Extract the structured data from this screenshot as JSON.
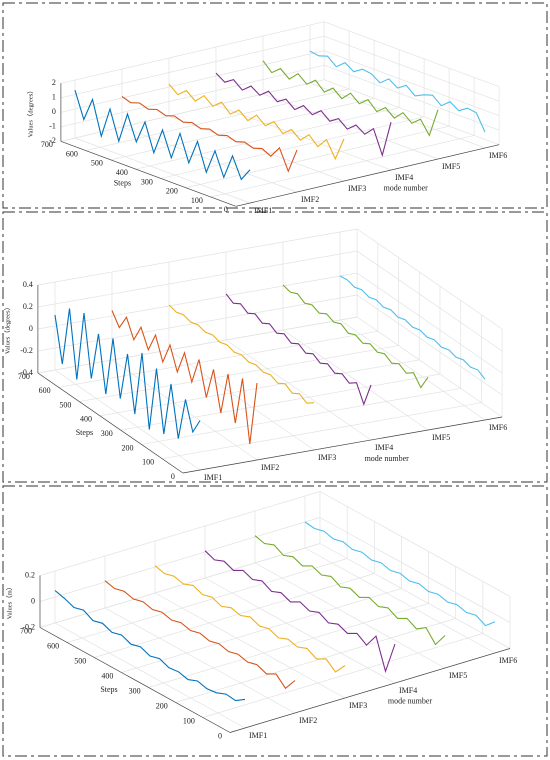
{
  "chart_data": [
    {
      "type": "waterfall3d",
      "zlabel": "Values（degrees）",
      "ylabel": "Steps",
      "xlabel": "mode number",
      "categories": [
        "IMF1",
        "IMF2",
        "IMF3",
        "IMF4",
        "IMF5",
        "IMF6"
      ],
      "x": [
        0,
        35,
        70,
        105,
        140,
        175,
        210,
        245,
        280,
        315,
        350,
        385,
        420,
        455,
        490,
        525,
        560,
        595,
        630,
        665,
        700
      ],
      "ylim": [
        0,
        700
      ],
      "yticks": [
        0,
        100,
        200,
        300,
        400,
        500,
        600,
        700
      ],
      "zlim": [
        -2,
        2
      ],
      "zticks": [
        -2,
        -1,
        0,
        1,
        2
      ],
      "grid": true,
      "series": [
        {
          "color": "#0072BD",
          "values": [
            0.3,
            -0.6,
            0.8,
            -0.9,
            0.7,
            -1,
            0.9,
            -0.8,
            1,
            -0.9,
            0.8,
            -1,
            0.9,
            -0.7,
            1,
            -1.1,
            0.9,
            -1.2,
            1.1,
            -0.5,
            1.3
          ]
        },
        {
          "color": "#D95319",
          "values": [
            0.9,
            -0.8,
            0.6,
            -0.2,
            0.1,
            -0.1,
            0.1,
            -0.1,
            0.1,
            -0.1,
            0.1,
            -0.1,
            0.1,
            -0.1,
            0.1,
            -0.1,
            0.1,
            -0.1,
            0.1,
            -0.1,
            0.1
          ]
        },
        {
          "color": "#EDB120",
          "values": [
            0.9,
            -0.7,
            0.4,
            -0.3,
            0.3,
            -0.3,
            0.2,
            -0.3,
            0.3,
            -0.2,
            0.3,
            -0.3,
            0.2,
            -0.3,
            0.3,
            -0.2,
            0.3,
            -0.3,
            0.2,
            -0.3,
            0.2
          ]
        },
        {
          "color": "#7E2F8E",
          "values": [
            1.3,
            -1.2,
            0.4,
            -0.2,
            0.2,
            -0.3,
            0.2,
            -0.2,
            0.3,
            -0.2,
            0.2,
            -0.3,
            0.2,
            -0.2,
            0.3,
            -0.2,
            0.2,
            -0.3,
            0.2,
            -0.2,
            0.2
          ]
        },
        {
          "color": "#77AC30",
          "values": [
            1.4,
            -0.6,
            0.3,
            -0.2,
            0.3,
            -0.3,
            0.2,
            -0.3,
            0.3,
            -0.2,
            0.3,
            -0.3,
            0.2,
            -0.3,
            0.3,
            -0.2,
            0.3,
            -0.3,
            0.2,
            -0.3,
            0.3
          ]
        },
        {
          "color": "#4DBEEE",
          "values": [
            -0.9,
            0.2,
            0.3,
            -0.1,
            0.3,
            -0.2,
            0.3,
            0.1,
            -0.2,
            0.3,
            -0.1,
            0.3,
            -0.2,
            0.2,
            0.3,
            -0.1,
            0.3,
            -0.2,
            0.3,
            0.1,
            0.2
          ]
        }
      ]
    },
    {
      "type": "waterfall3d",
      "zlabel": "Values（degrees）",
      "ylabel": "Steps",
      "xlabel": "mode number",
      "categories": [
        "IMF1",
        "IMF2",
        "IMF3",
        "IMF4",
        "IMF5",
        "IMF6"
      ],
      "x": [
        0,
        35,
        70,
        105,
        140,
        175,
        210,
        245,
        280,
        315,
        350,
        385,
        420,
        455,
        490,
        525,
        560,
        595,
        630,
        665,
        700
      ],
      "ylim": [
        0,
        700
      ],
      "yticks": [
        0,
        100,
        200,
        300,
        400,
        500,
        600,
        700
      ],
      "zlim": [
        -0.4,
        0.4
      ],
      "zticks": [
        -0.4,
        -0.2,
        0,
        0.2,
        0.4
      ],
      "grid": true,
      "series": [
        {
          "color": "#0072BD",
          "values": [
            0.05,
            -0.1,
            0.15,
            -0.25,
            0.2,
            -0.3,
            0.25,
            -0.35,
            0.3,
            -0.3,
            0.2,
            -0.25,
            0.25,
            -0.3,
            0.2,
            -0.25,
            0.3,
            -0.35,
            0.25,
            -0.3,
            0.1
          ]
        },
        {
          "color": "#D95319",
          "values": [
            0.3,
            -0.3,
            0.25,
            -0.2,
            0.2,
            -0.2,
            0.15,
            -0.15,
            0.15,
            -0.1,
            0.12,
            -0.1,
            0.1,
            -0.1,
            0.1,
            -0.08,
            0.08,
            -0.08,
            0.08,
            -0.06,
            0.05
          ]
        },
        {
          "color": "#EDB120",
          "values": [
            0.03,
            -0.02,
            0.02,
            -0.02,
            0.02,
            -0.02,
            0.01,
            -0.01,
            0.01,
            -0.01,
            0.01,
            -0.01,
            0.01,
            -0.01,
            0.01,
            -0.01,
            0.01,
            -0.01,
            0.01,
            -0.01,
            0.01
          ]
        },
        {
          "color": "#7E2F8E",
          "values": [
            0.1,
            -0.12,
            0.03,
            -0.02,
            0.02,
            -0.02,
            0.02,
            -0.02,
            0.02,
            -0.02,
            0.02,
            -0.02,
            0.02,
            -0.02,
            0.02,
            -0.02,
            0.02,
            -0.02,
            0.02,
            -0.02,
            0.02
          ]
        },
        {
          "color": "#77AC30",
          "values": [
            0.08,
            -0.06,
            0.03,
            -0.02,
            0.02,
            -0.02,
            0.02,
            -0.01,
            0.02,
            -0.02,
            0.01,
            -0.02,
            0.02,
            -0.01,
            0.02,
            -0.02,
            0.01,
            -0.02,
            0.02,
            -0.01,
            0.01
          ]
        },
        {
          "color": "#4DBEEE",
          "values": [
            -0.03,
            0.01,
            -0.01,
            0.01,
            -0.01,
            0.01,
            -0.01,
            0.01,
            -0.01,
            0.01,
            -0.01,
            0.01,
            -0.01,
            0.01,
            -0.01,
            0.01,
            -0.01,
            0.01,
            -0.01,
            0.01,
            0
          ]
        }
      ]
    },
    {
      "type": "waterfall3d",
      "zlabel": "Values（m）",
      "ylabel": "Steps",
      "xlabel": "mode number",
      "categories": [
        "IMF1",
        "IMF2",
        "IMF3",
        "IMF4",
        "IMF5",
        "IMF6"
      ],
      "x": [
        0,
        35,
        70,
        105,
        140,
        175,
        210,
        245,
        280,
        315,
        350,
        385,
        420,
        455,
        490,
        525,
        560,
        595,
        630,
        665,
        700
      ],
      "ylim": [
        0,
        700
      ],
      "yticks": [
        0,
        100,
        200,
        300,
        400,
        500,
        600,
        700
      ],
      "zlim": [
        -0.2,
        0.2
      ],
      "zticks": [
        -0.2,
        0,
        0.2
      ],
      "grid": true,
      "series": [
        {
          "color": "#0072BD",
          "values": [
            0.02,
            -0.03,
            -0.02,
            -0.05,
            -0.06,
            -0.04,
            -0.07,
            -0.05,
            -0.06,
            -0.03,
            -0.05,
            -0.02,
            -0.04,
            -0.01,
            -0.03,
            0,
            -0.02,
            0.02,
            0,
            0.03,
            0.05
          ]
        },
        {
          "color": "#D95319",
          "values": [
            0.05,
            -0.05,
            0.02,
            -0.02,
            0.01,
            -0.01,
            0.01,
            -0.01,
            0.01,
            -0.01,
            0.01,
            -0.01,
            0.01,
            -0.01,
            0.01,
            -0.01,
            0.01,
            -0.01,
            0.01,
            -0.01,
            0.01
          ]
        },
        {
          "color": "#EDB120",
          "values": [
            0.05,
            -0.04,
            0.02,
            -0.02,
            0.02,
            -0.01,
            0.01,
            -0.02,
            0.01,
            -0.01,
            0.02,
            -0.01,
            0.01,
            -0.02,
            0.01,
            -0.01,
            0.02,
            -0.01,
            0.01,
            -0.01,
            0.01
          ]
        },
        {
          "color": "#7E2F8E",
          "values": [
            0.1,
            -0.15,
            0.08,
            -0.03,
            0.02,
            -0.02,
            0.01,
            -0.02,
            0.02,
            -0.01,
            0.02,
            -0.02,
            0.01,
            -0.02,
            0.02,
            -0.01,
            0.02,
            -0.02,
            0.01,
            -0.02,
            0.01
          ]
        },
        {
          "color": "#77AC30",
          "values": [
            0.05,
            -0.06,
            0.03,
            -0.02,
            0.02,
            -0.02,
            0.02,
            -0.01,
            0.02,
            -0.02,
            0.01,
            -0.02,
            0.02,
            -0.01,
            0.02,
            -0.02,
            0.01,
            -0.02,
            0.02,
            -0.01,
            0.01
          ]
        },
        {
          "color": "#4DBEEE",
          "values": [
            0.04,
            -0.03,
            0.01,
            -0.01,
            0.01,
            -0.01,
            0.01,
            -0.01,
            0.01,
            -0.01,
            0.01,
            -0.01,
            0.01,
            -0.01,
            0.01,
            -0.01,
            0.01,
            -0.01,
            0.01,
            -0.01,
            0
          ]
        }
      ]
    }
  ]
}
